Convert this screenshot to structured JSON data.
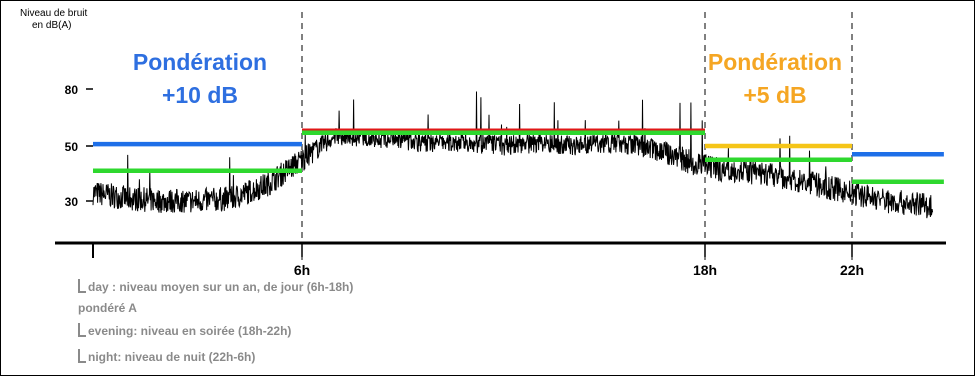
{
  "chart_data": {
    "type": "line",
    "ylabel": "Niveau de bruit\nen dB(A)",
    "ylabel_line1": "Niveau de bruit",
    "ylabel_line2": "en dB(A)",
    "yticks": [
      30,
      50,
      80
    ],
    "xticks": [
      {
        "label": "6h",
        "hour": 6
      },
      {
        "label": "18h",
        "hour": 18
      },
      {
        "label": "22h",
        "hour": 22
      }
    ],
    "xlim_hours": [
      0,
      24.5
    ],
    "annotations": [
      {
        "name": "weighting-day-night",
        "line1": "Pondération",
        "line2": "+10 dB",
        "color": "#2E6FE0"
      },
      {
        "name": "weighting-evening",
        "line1": "Pondération",
        "line2": "+5 dB",
        "color": "#F5A623"
      }
    ],
    "reference_levels": [
      {
        "name": "night-weighted-1",
        "from_hour": 0,
        "to_hour": 6,
        "level": 51,
        "color": "#1E6FE8"
      },
      {
        "name": "night-1",
        "from_hour": 0,
        "to_hour": 6,
        "level": 41,
        "color": "#2ED82E"
      },
      {
        "name": "day",
        "from_hour": 6,
        "to_hour": 18,
        "level": 58,
        "color": "#E01818"
      },
      {
        "name": "day-green",
        "from_hour": 6,
        "to_hour": 18,
        "level": 57,
        "color": "#2ED82E"
      },
      {
        "name": "evening-weighted",
        "from_hour": 18,
        "to_hour": 22,
        "level": 50,
        "color": "#F5C518"
      },
      {
        "name": "evening",
        "from_hour": 18,
        "to_hour": 22,
        "level": 45,
        "color": "#2ED82E"
      },
      {
        "name": "night-weighted-2",
        "from_hour": 22,
        "to_hour": 24.5,
        "level": 47,
        "color": "#1E6FE8"
      },
      {
        "name": "night-2",
        "from_hour": 22,
        "to_hour": 24.5,
        "level": 37,
        "color": "#2ED82E"
      }
    ],
    "noise_profile": {
      "hours": [
        0,
        1,
        2,
        3,
        4,
        5,
        6,
        7,
        8,
        9,
        10,
        11,
        12,
        13,
        14,
        15,
        16,
        17,
        18,
        19,
        20,
        21,
        22,
        23,
        24.2
      ],
      "level": [
        33,
        31,
        30,
        30,
        31,
        36,
        45,
        55,
        54,
        53,
        52,
        52,
        51,
        52,
        51,
        52,
        51,
        47,
        42,
        41,
        39,
        36,
        33,
        30,
        28
      ]
    },
    "grid": false
  },
  "legend": {
    "day_line1": "day : niveau moyen sur un an, de jour (6h-18h)",
    "day_line2": "pondéré A",
    "evening": "evening: niveau en soirée (18h-22h)",
    "night": "night: niveau de nuit (22h-6h)"
  },
  "colors": {
    "noise": "#000000",
    "tick_labels": "#000000",
    "legend_text": "#8a8a8a"
  }
}
